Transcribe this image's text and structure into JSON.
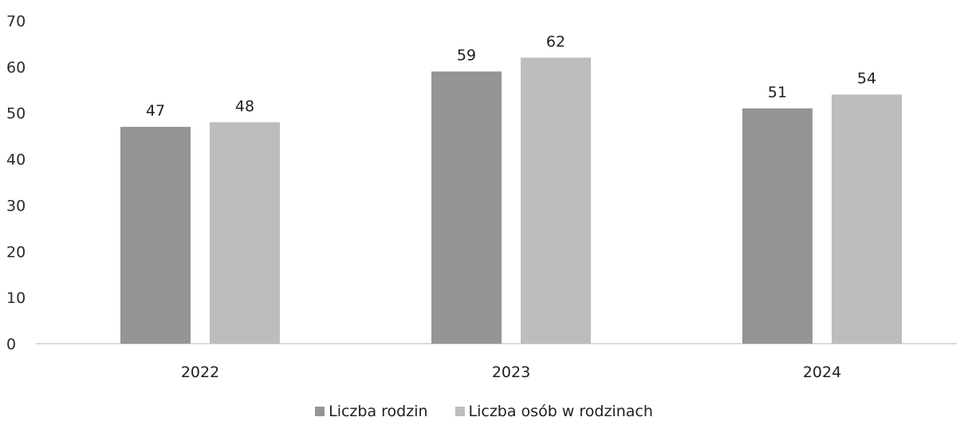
{
  "chart_data": {
    "type": "bar",
    "categories": [
      "2022",
      "2023",
      "2024"
    ],
    "series": [
      {
        "name": "Liczba rodzin",
        "values": [
          47,
          59,
          51
        ],
        "color": "#959595"
      },
      {
        "name": "Liczba osób w rodzinach",
        "values": [
          48,
          62,
          54
        ],
        "color": "#bdbdbd"
      }
    ],
    "y_ticks": [
      "0",
      "10",
      "20",
      "30",
      "40",
      "50",
      "60",
      "70"
    ],
    "ylim": [
      0,
      70
    ],
    "grid": false,
    "legend_position": "bottom-center",
    "data_labels": true
  }
}
